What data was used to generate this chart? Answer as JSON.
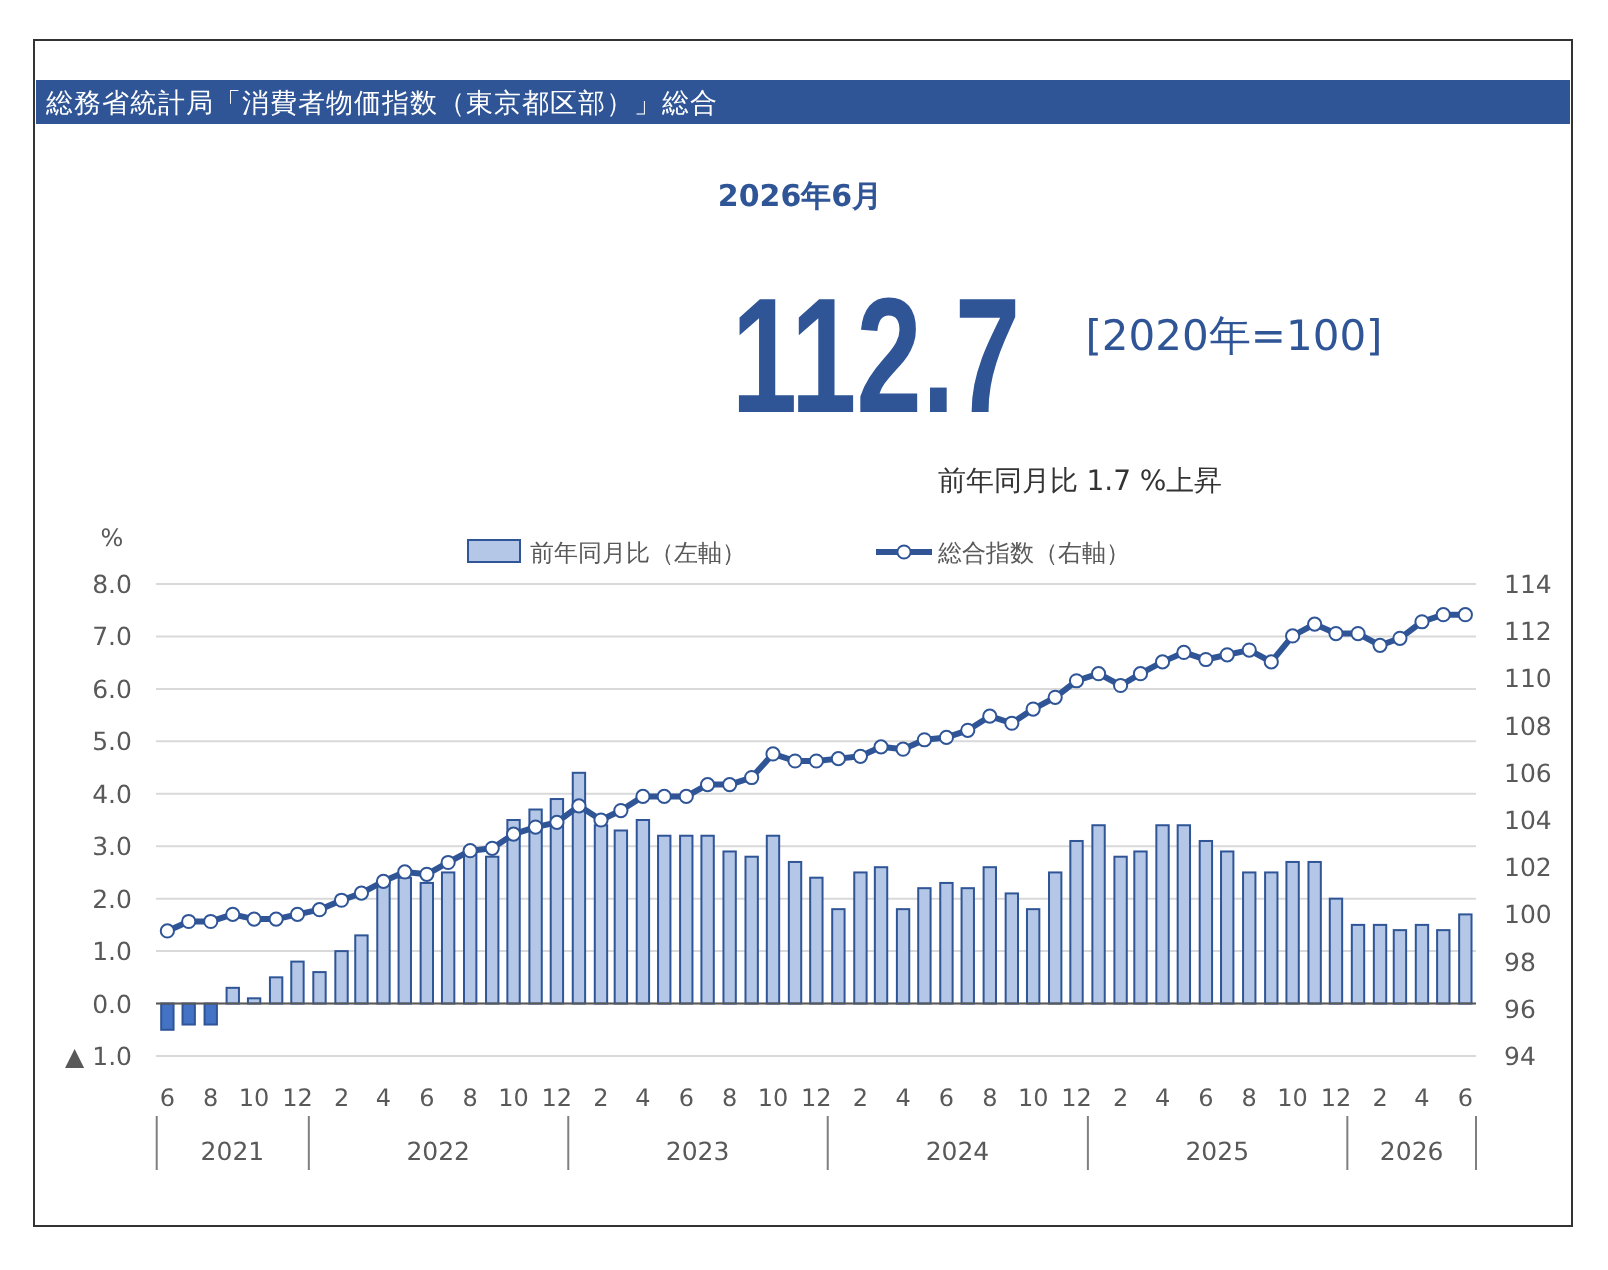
{
  "chart_data": {
    "type": "bar",
    "title": "総務省統計局「消費者物価指数（東京都区部）」総合",
    "annotations": [
      "2026年6月",
      "112.7",
      "[2020年=100]",
      "前年同月比 1.7 %上昇",
      "2021",
      "2022",
      "2023",
      "2024",
      "2025",
      "2026"
    ],
    "ylabel": "%",
    "x": [
      "2021-06",
      "2021-07",
      "2021-08",
      "2021-09",
      "2021-10",
      "2021-11",
      "2021-12",
      "2022-01",
      "2022-02",
      "2022-03",
      "2022-04",
      "2022-05",
      "2022-06",
      "2022-07",
      "2022-08",
      "2022-09",
      "2022-10",
      "2022-11",
      "2022-12",
      "2023-01",
      "2023-02",
      "2023-03",
      "2023-04",
      "2023-05",
      "2023-06",
      "2023-07",
      "2023-08",
      "2023-09",
      "2023-10",
      "2023-11",
      "2023-12",
      "2024-01",
      "2024-02",
      "2024-03",
      "2024-04",
      "2024-05",
      "2024-06",
      "2024-07",
      "2024-08",
      "2024-09",
      "2024-10",
      "2024-11",
      "2024-12",
      "2025-01",
      "2025-02",
      "2025-03",
      "2025-04",
      "2025-05",
      "2025-06",
      "2025-07",
      "2025-08",
      "2025-09",
      "2025-10",
      "2025-11",
      "2025-12",
      "2026-01",
      "2026-02",
      "2026-03",
      "2026-04",
      "2026-05",
      "2026-06"
    ],
    "xlim": [
      "2021-05-16",
      "2026-06-16"
    ],
    "xticks": [
      {
        "value": "2021-06",
        "label": "6"
      },
      {
        "value": "2021-08",
        "label": "8"
      },
      {
        "value": "2021-10",
        "label": "10"
      },
      {
        "value": "2021-12",
        "label": "12"
      },
      {
        "value": "2022-02",
        "label": "2"
      },
      {
        "value": "2022-04",
        "label": "4"
      },
      {
        "value": "2022-06",
        "label": "6"
      },
      {
        "value": "2022-08",
        "label": "8"
      },
      {
        "value": "2022-10",
        "label": "10"
      },
      {
        "value": "2022-12",
        "label": "12"
      },
      {
        "value": "2023-02",
        "label": "2"
      },
      {
        "value": "2023-04",
        "label": "4"
      },
      {
        "value": "2023-06",
        "label": "6"
      },
      {
        "value": "2023-08",
        "label": "8"
      },
      {
        "value": "2023-10",
        "label": "10"
      },
      {
        "value": "2023-12",
        "label": "12"
      },
      {
        "value": "2024-02",
        "label": "2"
      },
      {
        "value": "2024-04",
        "label": "4"
      },
      {
        "value": "2024-06",
        "label": "6"
      },
      {
        "value": "2024-08",
        "label": "8"
      },
      {
        "value": "2024-10",
        "label": "10"
      },
      {
        "value": "2024-12",
        "label": "12"
      },
      {
        "value": "2025-02",
        "label": "2"
      },
      {
        "value": "2025-04",
        "label": "4"
      },
      {
        "value": "2025-06",
        "label": "6"
      },
      {
        "value": "2025-08",
        "label": "8"
      },
      {
        "value": "2025-10",
        "label": "10"
      },
      {
        "value": "2025-12",
        "label": "12"
      },
      {
        "value": "2026-02",
        "label": "2"
      },
      {
        "value": "2026-04",
        "label": "4"
      },
      {
        "value": "2026-06",
        "label": "6"
      }
    ],
    "ylim": [
      -1,
      8
    ],
    "yticks": [
      {
        "value": 8,
        "label": "8.0"
      },
      {
        "value": 7,
        "label": "7.0"
      },
      {
        "value": 6,
        "label": "6.0"
      },
      {
        "value": 5,
        "label": "5.0"
      },
      {
        "value": 4,
        "label": "4.0"
      },
      {
        "value": 3,
        "label": "3.0"
      },
      {
        "value": 2,
        "label": "2.0"
      },
      {
        "value": 1,
        "label": "1.0"
      },
      {
        "value": 0,
        "label": "0.0"
      },
      {
        "value": -1,
        "label": "▲ 1.0"
      }
    ],
    "y2lim": [
      94,
      114
    ],
    "y2ticks": [
      94,
      96,
      98,
      100,
      102,
      104,
      106,
      108,
      110,
      112,
      114
    ],
    "grid": "y",
    "legend": "top",
    "series": [
      {
        "name": "前年同月比（左軸）",
        "color": "#b4c7e7",
        "colors": [
          "#4472c4",
          "#4472c4",
          "#4472c4",
          "#b4c7e7",
          "#b4c7e7",
          "#b4c7e7",
          "#b4c7e7",
          "#b4c7e7",
          "#b4c7e7",
          "#b4c7e7",
          "#b4c7e7",
          "#b4c7e7",
          "#b4c7e7",
          "#b4c7e7",
          "#b4c7e7",
          "#b4c7e7",
          "#b4c7e7",
          "#b4c7e7",
          "#b4c7e7",
          "#b4c7e7",
          "#b4c7e7",
          "#b4c7e7",
          "#b4c7e7",
          "#b4c7e7",
          "#b4c7e7",
          "#b4c7e7",
          "#b4c7e7",
          "#b4c7e7",
          "#b4c7e7",
          "#b4c7e7",
          "#b4c7e7",
          "#b4c7e7",
          "#b4c7e7",
          "#b4c7e7",
          "#b4c7e7",
          "#b4c7e7",
          "#b4c7e7",
          "#b4c7e7",
          "#b4c7e7",
          "#b4c7e7",
          "#b4c7e7",
          "#b4c7e7",
          "#b4c7e7",
          "#b4c7e7",
          "#b4c7e7",
          "#b4c7e7",
          "#b4c7e7",
          "#b4c7e7",
          "#b4c7e7",
          "#b4c7e7",
          "#b4c7e7",
          "#b4c7e7",
          "#b4c7e7",
          "#b4c7e7",
          "#b4c7e7",
          "#b4c7e7",
          "#b4c7e7",
          "#b4c7e7",
          "#b4c7e7",
          "#b4c7e7",
          "#b4c7e7"
        ],
        "values": [
          -0.5,
          -0.4,
          -0.4,
          0.3,
          0.1,
          0.5,
          0.8,
          0.6,
          1.0,
          1.3,
          2.3,
          2.4,
          2.3,
          2.5,
          2.9,
          2.8,
          3.5,
          3.7,
          3.9,
          4.4,
          3.4,
          3.3,
          3.5,
          3.2,
          3.2,
          3.2,
          2.9,
          2.8,
          3.2,
          2.7,
          2.4,
          1.8,
          2.5,
          2.6,
          1.8,
          2.2,
          2.3,
          2.2,
          2.6,
          2.1,
          1.8,
          2.5,
          3.1,
          3.4,
          2.8,
          2.9,
          3.4,
          3.4,
          3.1,
          2.9,
          2.5,
          2.5,
          2.7,
          2.7,
          2.0,
          1.5,
          1.5,
          1.4,
          1.5,
          1.4,
          1.7
        ]
      },
      {
        "name": "総合指数（右軸）",
        "type": "line",
        "axis": "y2",
        "color": "#2f5597",
        "marker": "circle",
        "line_style": "solid",
        "values": [
          99.3,
          99.7,
          99.7,
          100.0,
          99.8,
          99.8,
          100.0,
          100.2,
          100.6,
          100.9,
          101.4,
          101.8,
          101.7,
          102.2,
          102.7,
          102.8,
          103.4,
          103.7,
          103.9,
          104.6,
          104.0,
          104.4,
          105.0,
          105.0,
          105.0,
          105.5,
          105.5,
          105.8,
          106.8,
          106.5,
          106.5,
          106.6,
          106.7,
          107.1,
          107.0,
          107.4,
          107.5,
          107.8,
          108.4,
          108.1,
          108.7,
          109.2,
          109.9,
          110.2,
          109.7,
          110.2,
          110.7,
          111.1,
          110.8,
          111.0,
          111.2,
          110.7,
          111.8,
          112.3,
          111.9,
          111.9,
          111.4,
          111.7,
          112.4,
          112.7,
          112.7
        ]
      }
    ]
  }
}
